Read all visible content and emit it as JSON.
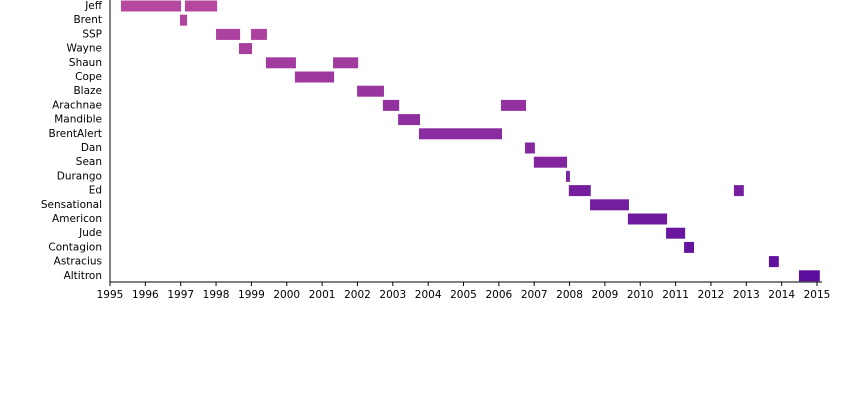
{
  "chart_data": {
    "type": "timeline",
    "xlim": [
      1995,
      2015
    ],
    "xticks": [
      1995,
      1996,
      1997,
      1998,
      1999,
      2000,
      2001,
      2002,
      2003,
      2004,
      2005,
      2006,
      2007,
      2008,
      2009,
      2010,
      2011,
      2012,
      2013,
      2014,
      2015
    ],
    "rows": [
      {
        "label": "Jeff",
        "color": "#b5479f",
        "spans": [
          [
            1995.31,
            1997.01
          ],
          [
            1997.12,
            1998.03
          ]
        ]
      },
      {
        "label": "Brent",
        "color": "#b0449f",
        "spans": [
          [
            1996.98,
            1997.18
          ]
        ]
      },
      {
        "label": "SSP",
        "color": "#ac419f",
        "spans": [
          [
            1998.0,
            1998.68
          ],
          [
            1998.99,
            1999.44
          ]
        ]
      },
      {
        "label": "Wayne",
        "color": "#a73e9f",
        "spans": [
          [
            1998.65,
            1999.02
          ]
        ]
      },
      {
        "label": "Shaun",
        "color": "#a23b9f",
        "spans": [
          [
            1999.41,
            2000.26
          ],
          [
            2001.31,
            2002.02
          ]
        ]
      },
      {
        "label": "Cope",
        "color": "#9d389f",
        "spans": [
          [
            2000.23,
            2001.34
          ]
        ]
      },
      {
        "label": "Blaze",
        "color": "#99359f",
        "spans": [
          [
            2001.99,
            2002.75
          ]
        ]
      },
      {
        "label": "Arachnae",
        "color": "#94329f",
        "spans": [
          [
            2002.72,
            2003.18
          ],
          [
            2006.06,
            2006.77
          ]
        ]
      },
      {
        "label": "Mandible",
        "color": "#8f2f9f",
        "spans": [
          [
            2003.15,
            2003.77
          ]
        ]
      },
      {
        "label": "BrentAlert",
        "color": "#8a2c9f",
        "spans": [
          [
            2003.74,
            2006.09
          ]
        ]
      },
      {
        "label": "Dan",
        "color": "#86299f",
        "spans": [
          [
            2006.74,
            2007.02
          ]
        ]
      },
      {
        "label": "Sean",
        "color": "#81269f",
        "spans": [
          [
            2006.99,
            2007.93
          ]
        ]
      },
      {
        "label": "Durango",
        "color": "#7c239f",
        "spans": [
          [
            2007.9,
            2008.01
          ]
        ]
      },
      {
        "label": "Ed",
        "color": "#77209f",
        "spans": [
          [
            2007.98,
            2008.6
          ],
          [
            2012.65,
            2012.93
          ]
        ]
      },
      {
        "label": "Sensational",
        "color": "#731d9f",
        "spans": [
          [
            2008.58,
            2009.68
          ]
        ]
      },
      {
        "label": "Americon",
        "color": "#6e1a9f",
        "spans": [
          [
            2009.65,
            2010.76
          ]
        ]
      },
      {
        "label": "Jude",
        "color": "#69179f",
        "spans": [
          [
            2010.73,
            2011.27
          ]
        ]
      },
      {
        "label": "Contagion",
        "color": "#64149f",
        "spans": [
          [
            2011.24,
            2011.52
          ]
        ]
      },
      {
        "label": "Astracius",
        "color": "#60119f",
        "spans": [
          [
            2013.64,
            2013.92
          ]
        ]
      },
      {
        "label": "Altitron",
        "color": "#5b0e9e",
        "spans": [
          [
            2014.49,
            2015.08
          ]
        ]
      }
    ]
  }
}
